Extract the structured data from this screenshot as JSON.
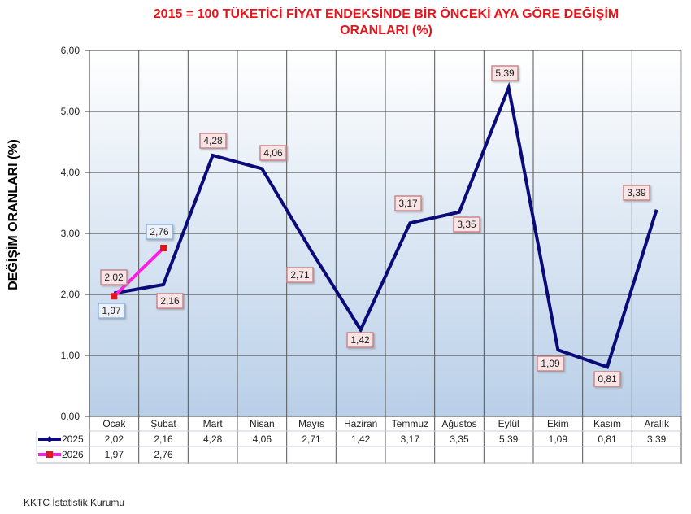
{
  "title_line1": "2015 = 100 TÜKETİCİ FİYAT ENDEKSİNDE BİR ÖNCEKİ AYA GÖRE DEĞİŞİM",
  "title_line2": "ORANLARI (%)",
  "ylabel": "DEĞİŞİM ORANLARI (%)",
  "source": "KKTC İstatistik Kurumu",
  "colors": {
    "series_2025": "#0a0a78",
    "series_2026": "#ff1ce4",
    "marker_2026": "#e8141c",
    "title": "#e8141c"
  },
  "y_ticks": [
    "0,00",
    "1,00",
    "2,00",
    "3,00",
    "4,00",
    "5,00",
    "6,00"
  ],
  "chart_data": {
    "type": "line",
    "title": "2015 = 100 TÜKETİCİ FİYAT ENDEKSİNDE BİR ÖNCEKİ AYA GÖRE DEĞİŞİM ORANLARI (%)",
    "xlabel": "",
    "ylabel": "DEĞİŞİM ORANLARI (%)",
    "ylim": [
      0,
      6
    ],
    "grid": true,
    "legend_position": "data-table-left",
    "categories": [
      "Ocak",
      "Şubat",
      "Mart",
      "Nisan",
      "Mayıs",
      "Haziran",
      "Temmuz",
      "Ağustos",
      "Eylül",
      "Ekim",
      "Kasım",
      "Aralık"
    ],
    "series": [
      {
        "name": "2025",
        "values": [
          2.02,
          2.16,
          4.28,
          4.06,
          2.71,
          1.42,
          3.17,
          3.35,
          5.39,
          1.09,
          0.81,
          3.39
        ],
        "labels": [
          "2,02",
          "2,16",
          "4,28",
          "4,06",
          "2,71",
          "1,42",
          "3,17",
          "3,35",
          "5,39",
          "1,09",
          "0,81",
          "3,39"
        ]
      },
      {
        "name": "2026",
        "values": [
          1.97,
          2.76
        ],
        "labels": [
          "1,97",
          "2,76"
        ]
      }
    ]
  }
}
